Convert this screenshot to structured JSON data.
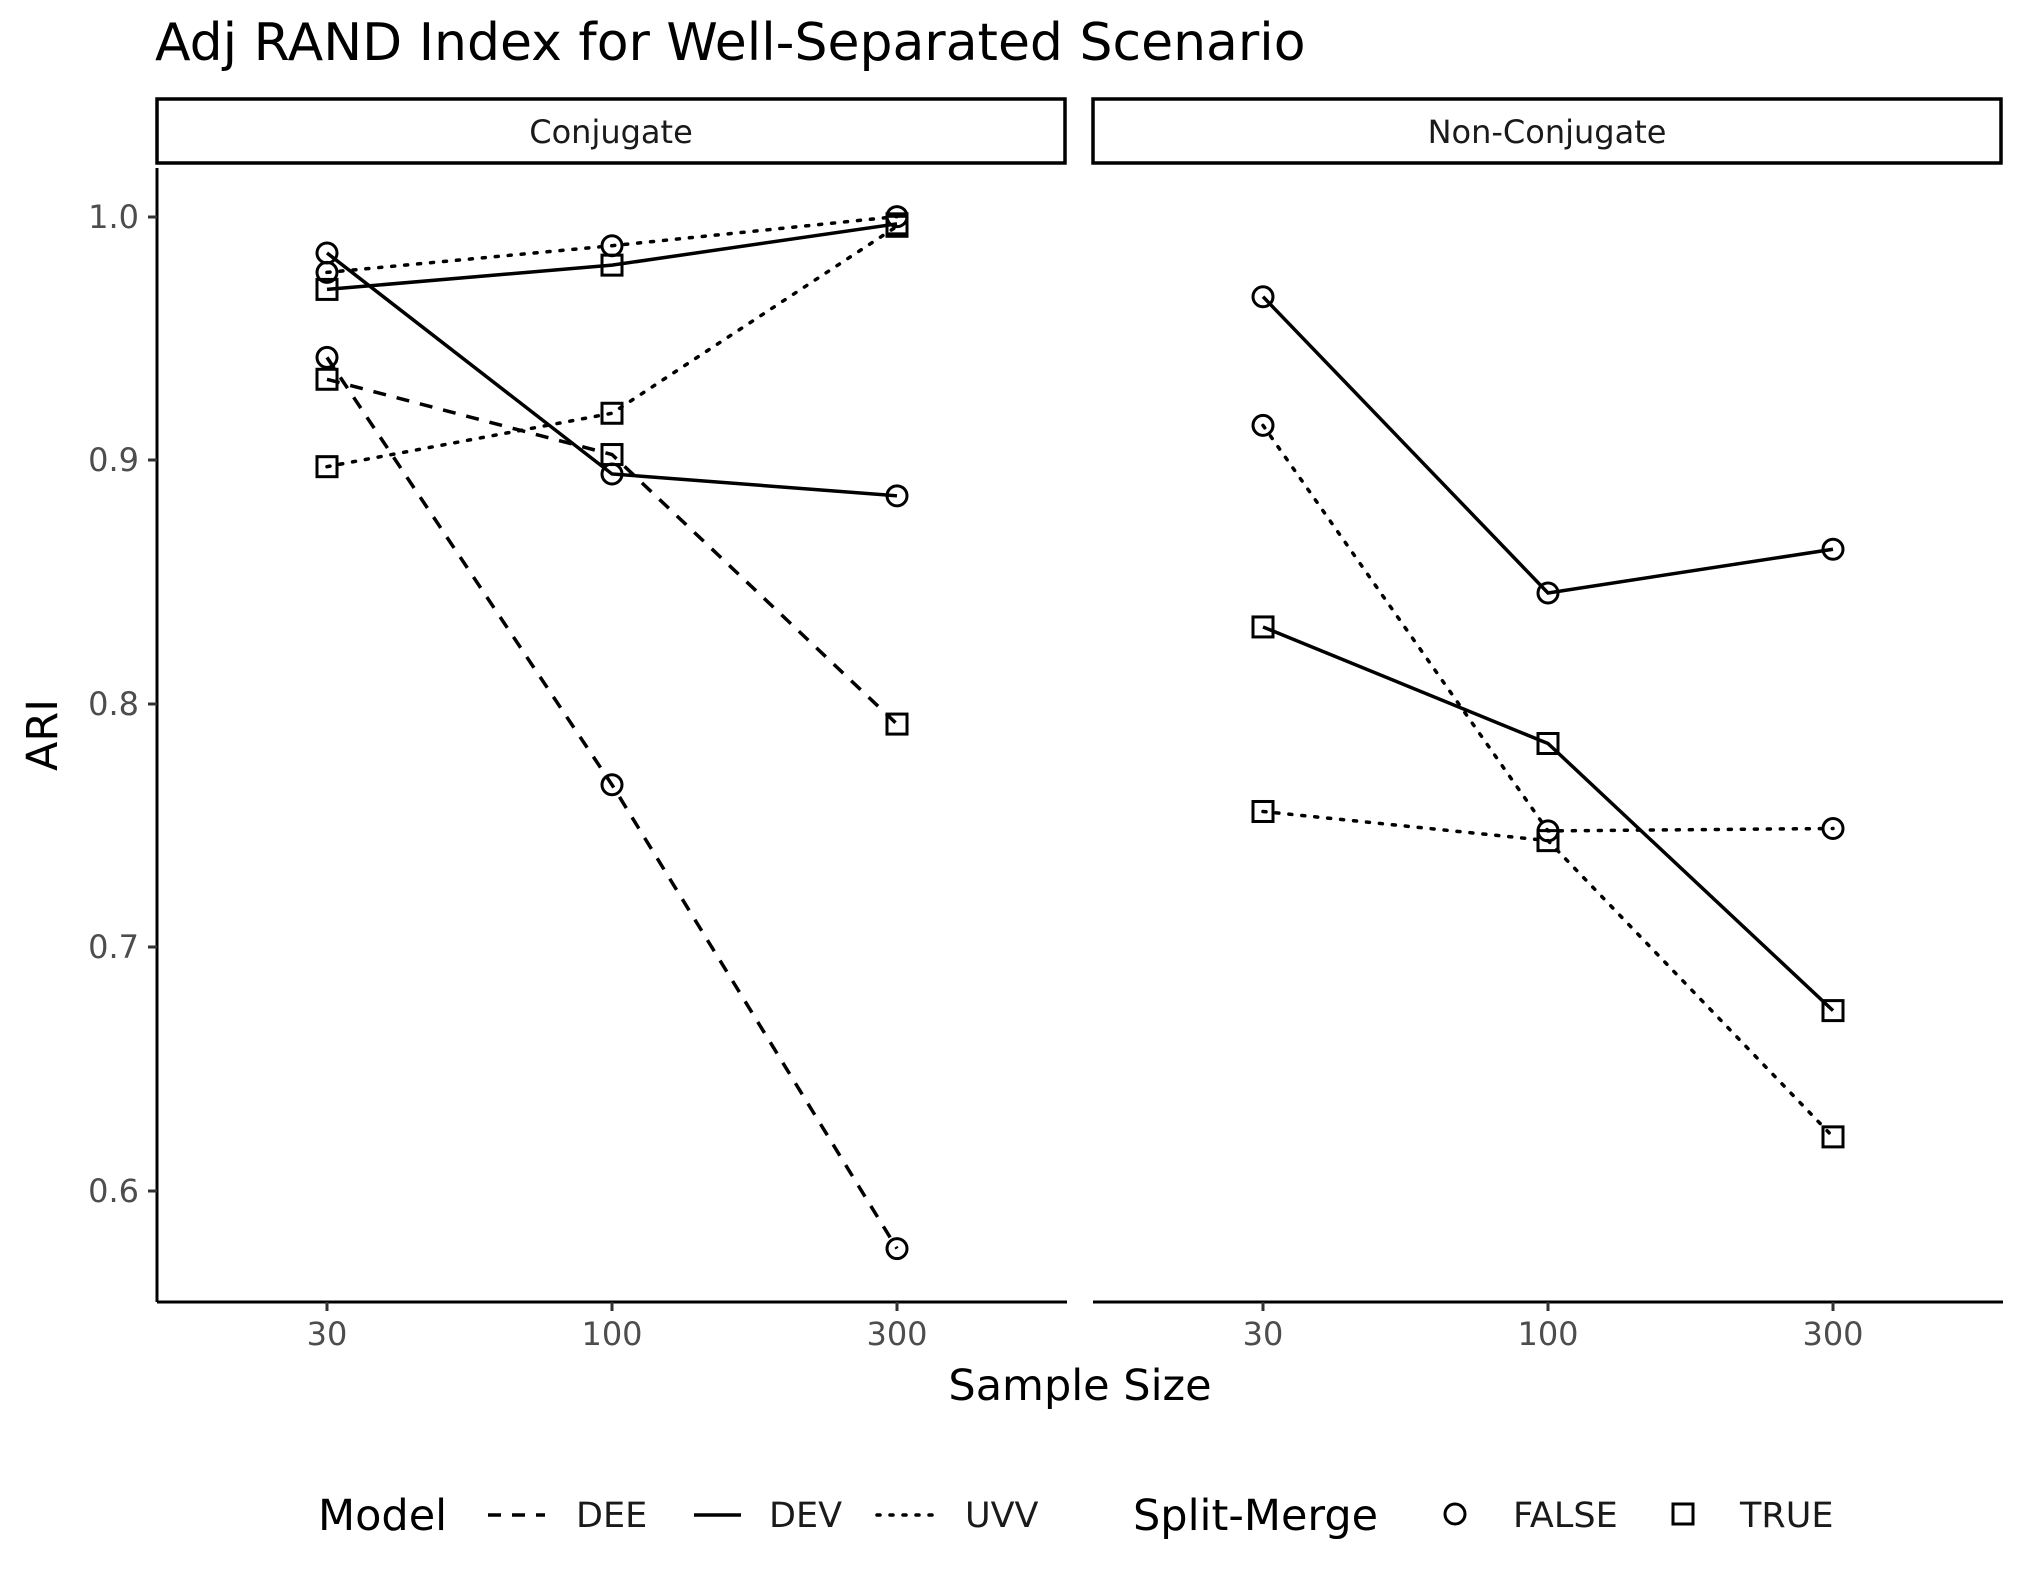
{
  "chart_data": {
    "type": "line",
    "title": "Adj RAND Index for Well-Separated Scenario",
    "xlabel": "Sample Size",
    "ylabel": "ARI",
    "categories": [
      "30",
      "100",
      "300"
    ],
    "yticks": [
      "0.6",
      "0.7",
      "0.8",
      "0.9",
      "1.0"
    ],
    "ylim": [
      0.553,
      1.02
    ],
    "grid": false,
    "legend_position": "bottom",
    "legends": [
      {
        "title": "Model",
        "entries": [
          {
            "label": "DEE",
            "linetype": "dashed"
          },
          {
            "label": "DEV",
            "linetype": "solid"
          },
          {
            "label": "UVV",
            "linetype": "dotted"
          }
        ]
      },
      {
        "title": "Split-Merge",
        "entries": [
          {
            "label": "FALSE",
            "shape": "circle"
          },
          {
            "label": "TRUE",
            "shape": "square"
          }
        ]
      }
    ],
    "panels": [
      {
        "label": "Conjugate",
        "series": [
          {
            "model": "DEE",
            "split_merge": "FALSE",
            "values": [
              0.942,
              0.766,
              0.575
            ]
          },
          {
            "model": "DEE",
            "split_merge": "TRUE",
            "values": [
              0.933,
              0.902,
              0.791
            ]
          },
          {
            "model": "DEV",
            "split_merge": "FALSE",
            "values": [
              0.985,
              0.894,
              0.885
            ]
          },
          {
            "model": "DEV",
            "split_merge": "TRUE",
            "values": [
              0.97,
              0.98,
              0.997
            ]
          },
          {
            "model": "UVV",
            "split_merge": "FALSE",
            "values": [
              0.977,
              0.988,
              1.0
            ]
          },
          {
            "model": "UVV",
            "split_merge": "TRUE",
            "values": [
              0.897,
              0.919,
              0.996
            ]
          }
        ]
      },
      {
        "label": "Non-Conjugate",
        "series": [
          {
            "model": "DEV",
            "split_merge": "FALSE",
            "values": [
              0.967,
              0.845,
              0.863
            ]
          },
          {
            "model": "DEV",
            "split_merge": "TRUE",
            "values": [
              0.831,
              0.783,
              0.673
            ]
          },
          {
            "model": "UVV",
            "split_merge": "FALSE",
            "values": [
              0.914,
              0.747,
              0.748
            ]
          },
          {
            "model": "UVV",
            "split_merge": "TRUE",
            "values": [
              0.755,
              0.743,
              0.621
            ]
          }
        ]
      }
    ]
  }
}
